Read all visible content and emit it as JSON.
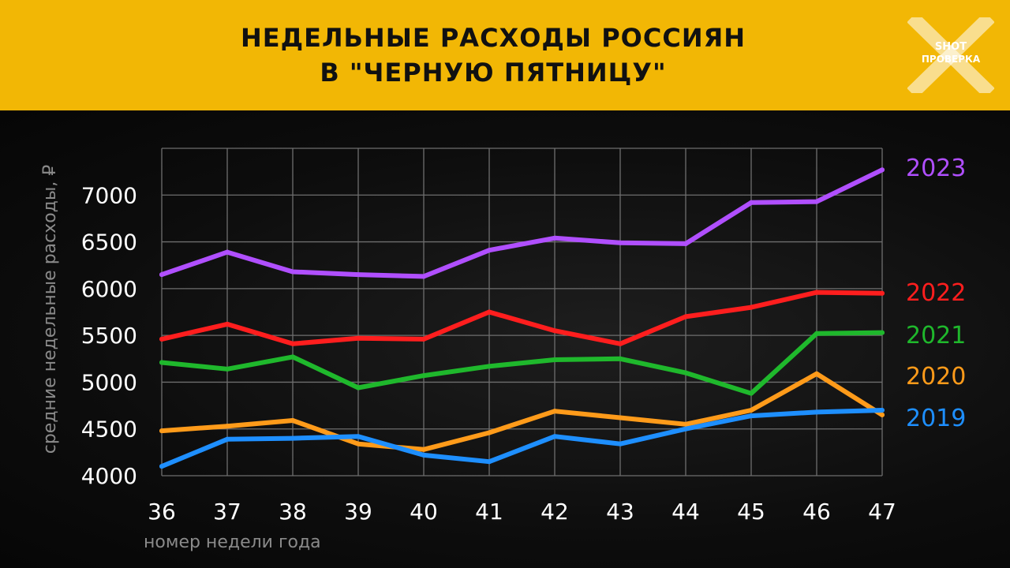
{
  "title": {
    "line1": "НЕДЕЛЬНЫЕ РАСХОДЫ РОССИЯН",
    "line2": "В \"ЧЕРНУЮ ПЯТНИЦУ\""
  },
  "logo": {
    "line1": "SHOT",
    "line2": "ПРОВЕРКА"
  },
  "chart_data": {
    "type": "line",
    "xlabel": "номер недели года",
    "ylabel": "средние недельные расходы, ₽",
    "x": [
      36,
      37,
      38,
      39,
      40,
      41,
      42,
      43,
      44,
      45,
      46,
      47
    ],
    "xlim": [
      36,
      47
    ],
    "ylim": [
      4000,
      7500
    ],
    "yticks": [
      4000,
      4500,
      5000,
      5500,
      6000,
      6500,
      7000
    ],
    "grid": true,
    "legend": "right, at line ends",
    "series": [
      {
        "name": "2023",
        "color": "#b04fff",
        "values": [
          6150,
          6390,
          6180,
          6150,
          6130,
          6410,
          6540,
          6490,
          6480,
          6920,
          6930,
          7270
        ]
      },
      {
        "name": "2022",
        "color": "#ff1e1e",
        "values": [
          5460,
          5620,
          5410,
          5470,
          5460,
          5750,
          5550,
          5410,
          5700,
          5800,
          5960,
          5950
        ]
      },
      {
        "name": "2021",
        "color": "#1fb82c",
        "values": [
          5210,
          5140,
          5270,
          4940,
          5070,
          5170,
          5240,
          5250,
          5100,
          4880,
          5520,
          5530
        ]
      },
      {
        "name": "2020",
        "color": "#ff9b1a",
        "values": [
          4480,
          4530,
          4590,
          4340,
          4280,
          4460,
          4690,
          4620,
          4550,
          4700,
          5090,
          4650
        ]
      },
      {
        "name": "2019",
        "color": "#1e8fff",
        "values": [
          4100,
          4390,
          4400,
          4420,
          4220,
          4150,
          4420,
          4340,
          4500,
          4640,
          4680,
          4700
        ]
      }
    ]
  }
}
